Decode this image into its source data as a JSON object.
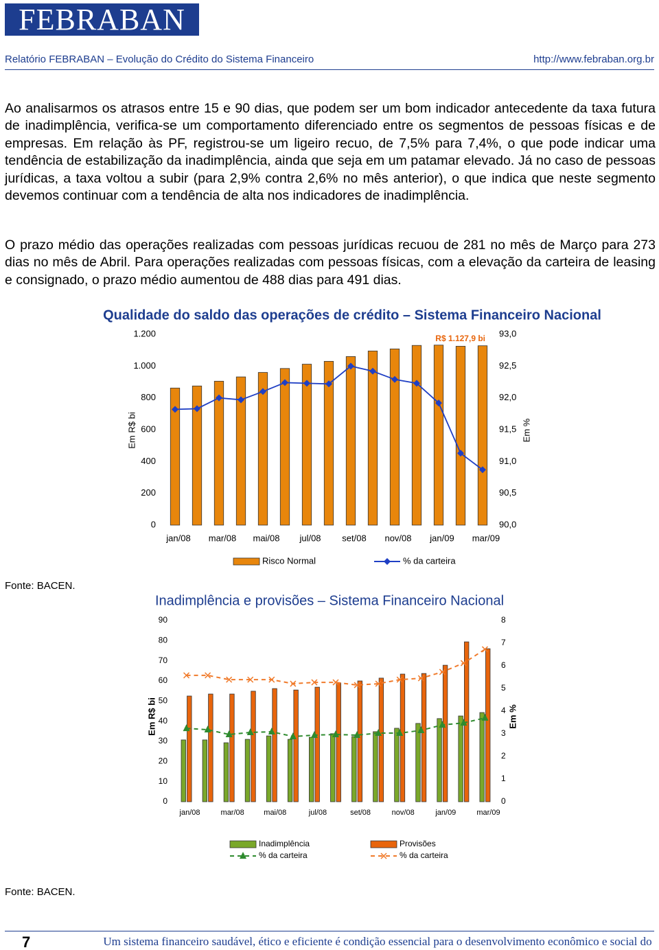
{
  "header": {
    "logo": "FEBRABAN",
    "subtitle": "Relatório FEBRABAN – Evolução do Crédito do Sistema Financeiro",
    "url": "http://www.febraban.org.br"
  },
  "paragraphs": [
    "Ao analisarmos os atrasos entre 15 e 90 dias, que podem ser um bom indicador antecedente da taxa futura de inadimplência, verifica-se um comportamento diferenciado entre os segmentos de pessoas físicas e de empresas. Em relação às PF, registrou-se um ligeiro recuo, de 7,5% para 7,4%, o que pode indicar uma tendência de estabilização da inadimplência, ainda que seja em um patamar elevado. Já no caso de pessoas jurídicas, a taxa voltou a subir (para 2,9% contra 2,6% no mês anterior), o que indica que neste segmento devemos continuar com a tendência de alta nos indicadores de inadimplência.",
    "O prazo médio das operações realizadas com pessoas jurídicas recuou de 281 no mês de Março para 273 dias no mês de Abril. Para operações realizadas com pessoas físicas, com a elevação da carteira de leasing e consignado, o prazo médio aumentou de 488 dias para 491 dias."
  ],
  "chart_data": [
    {
      "type": "bar",
      "title": "Qualidade do saldo das operações de crédito – Sistema Financeiro Nacional",
      "ylabel": "Em R$ bi",
      "y2label": "Em %",
      "annotation": "R$ 1.127,9 bi",
      "categories": [
        "jan/08",
        null,
        "mar/08",
        null,
        "mai/08",
        null,
        "jul/08",
        null,
        "set/08",
        null,
        "nov/08",
        null,
        "jan/09",
        null,
        "mar/09"
      ],
      "ylim": [
        0,
        1200
      ],
      "yticks": [
        0,
        200,
        400,
        600,
        800,
        {
          "value": 1000,
          "label": "1.000"
        },
        {
          "value": 1200,
          "label": "1.200"
        }
      ],
      "y2lim": [
        90,
        93
      ],
      "y2ticks": [
        {
          "value": 90,
          "label": "90,0"
        },
        {
          "value": 90.5,
          "label": "90,5"
        },
        {
          "value": 91,
          "label": "91,0"
        },
        {
          "value": 91.5,
          "label": "91,5"
        },
        {
          "value": 92,
          "label": "92,0"
        },
        {
          "value": 92.5,
          "label": "92,5"
        },
        {
          "value": 93,
          "label": "93,0"
        }
      ],
      "legend": "bottom",
      "series": [
        {
          "name": "Risco Normal",
          "type": "bar",
          "color": "#e8860c",
          "values": [
            862,
            875,
            905,
            932,
            960,
            985,
            1012,
            1030,
            1060,
            1095,
            1108,
            1130,
            1132,
            1125,
            1127.9
          ]
        },
        {
          "name": "% da carteira",
          "type": "line",
          "axis": "y2",
          "color": "#1f3fc4",
          "marker": "diamond",
          "values": [
            91.82,
            91.83,
            92.0,
            91.97,
            92.1,
            92.24,
            92.23,
            92.22,
            92.5,
            92.42,
            92.29,
            92.23,
            91.92,
            91.13,
            90.87
          ]
        }
      ]
    },
    {
      "type": "bar",
      "title": "Inadimplência e provisões – Sistema Financeiro Nacional",
      "ylabel": "Em R$ bi",
      "y2label": "Em %",
      "categories": [
        "jan/08",
        null,
        "mar/08",
        null,
        "mai/08",
        null,
        "jul/08",
        null,
        "set/08",
        null,
        "nov/08",
        null,
        "jan/09",
        null,
        "mar/09"
      ],
      "ylim": [
        0,
        90
      ],
      "yticks": [
        0,
        10,
        20,
        30,
        40,
        50,
        60,
        70,
        80,
        90
      ],
      "y2lim": [
        0,
        8
      ],
      "y2ticks": [
        0,
        1,
        2,
        3,
        4,
        5,
        6,
        7,
        8
      ],
      "legend": "bottom",
      "series": [
        {
          "name": "Inadimplência",
          "type": "bar",
          "color": "#7aa82a",
          "values": [
            30.7,
            30.7,
            29.3,
            31,
            32.7,
            31,
            32,
            33.8,
            32.4,
            34.8,
            36.5,
            38.9,
            41.3,
            42.6,
            44.3
          ]
        },
        {
          "name": "Provisões",
          "type": "bar",
          "color": "#e8650c",
          "values": [
            52.5,
            53.5,
            53.5,
            54.9,
            56.2,
            55.5,
            56.9,
            59,
            60,
            61.4,
            63.4,
            63.7,
            67.8,
            79.4,
            76
          ]
        },
        {
          "name": "% da carteira",
          "type": "line",
          "axis": "y2",
          "color": "#2e8b2e",
          "marker": "triangle",
          "dashed": true,
          "values": [
            3.24,
            3.18,
            2.97,
            3.06,
            3.09,
            2.88,
            2.94,
            2.97,
            2.94,
            3.03,
            3.03,
            3.15,
            3.39,
            3.48,
            3.7
          ]
        },
        {
          "name": "% da carteira",
          "type": "line",
          "axis": "y2",
          "color": "#f07a2a",
          "marker": "x",
          "dashed": true,
          "values": [
            5.58,
            5.58,
            5.39,
            5.39,
            5.39,
            5.21,
            5.27,
            5.27,
            5.15,
            5.21,
            5.39,
            5.45,
            5.73,
            6.12,
            6.73
          ]
        }
      ]
    }
  ],
  "sources": [
    "Fonte: BACEN.",
    "Fonte: BACEN."
  ],
  "footer": {
    "page": "7",
    "slogan": "Um sistema financeiro saudável, ético e eficiente é condição essencial para o desenvolvimento econômico e social do País"
  }
}
